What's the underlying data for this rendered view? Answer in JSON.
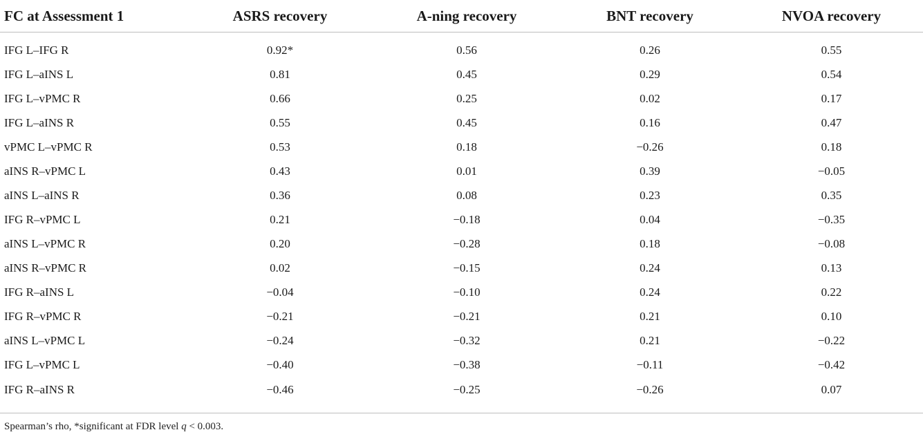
{
  "table": {
    "headers": [
      "FC at Assessment 1",
      "ASRS recovery",
      "A-ning recovery",
      "BNT recovery",
      "NVOA recovery"
    ],
    "rows": [
      [
        "IFG L–IFG R",
        "0.92*",
        "0.56",
        "0.26",
        "0.55"
      ],
      [
        "IFG L–aINS L",
        "0.81",
        "0.45",
        "0.29",
        "0.54"
      ],
      [
        "IFG L–vPMC R",
        "0.66",
        "0.25",
        "0.02",
        "0.17"
      ],
      [
        "IFG L–aINS R",
        "0.55",
        "0.45",
        "0.16",
        "0.47"
      ],
      [
        "vPMC L–vPMC R",
        "0.53",
        "0.18",
        "−0.26",
        "0.18"
      ],
      [
        "aINS R–vPMC L",
        "0.43",
        "0.01",
        "0.39",
        "−0.05"
      ],
      [
        "aINS L–aINS R",
        "0.36",
        "0.08",
        "0.23",
        "0.35"
      ],
      [
        "IFG R–vPMC L",
        "0.21",
        "−0.18",
        "0.04",
        "−0.35"
      ],
      [
        "aINS L–vPMC R",
        "0.20",
        "−0.28",
        "0.18",
        "−0.08"
      ],
      [
        "aINS R–vPMC R",
        "0.02",
        "−0.15",
        "0.24",
        "0.13"
      ],
      [
        "IFG R–aINS L",
        "−0.04",
        "−0.10",
        "0.24",
        "0.22"
      ],
      [
        "IFG R–vPMC R",
        "−0.21",
        "−0.21",
        "0.21",
        "0.10"
      ],
      [
        "aINS L–vPMC L",
        "−0.24",
        "−0.32",
        "0.21",
        "−0.22"
      ],
      [
        "IFG L–vPMC L",
        "−0.40",
        "−0.38",
        "−0.11",
        "−0.42"
      ],
      [
        "IFG R–aINS R",
        "−0.46",
        "−0.25",
        "−0.26",
        "0.07"
      ]
    ]
  },
  "footnote": {
    "prefix": "Spearman’s rho, *significant at FDR level ",
    "variable": "q",
    "suffix": " < 0.003."
  }
}
